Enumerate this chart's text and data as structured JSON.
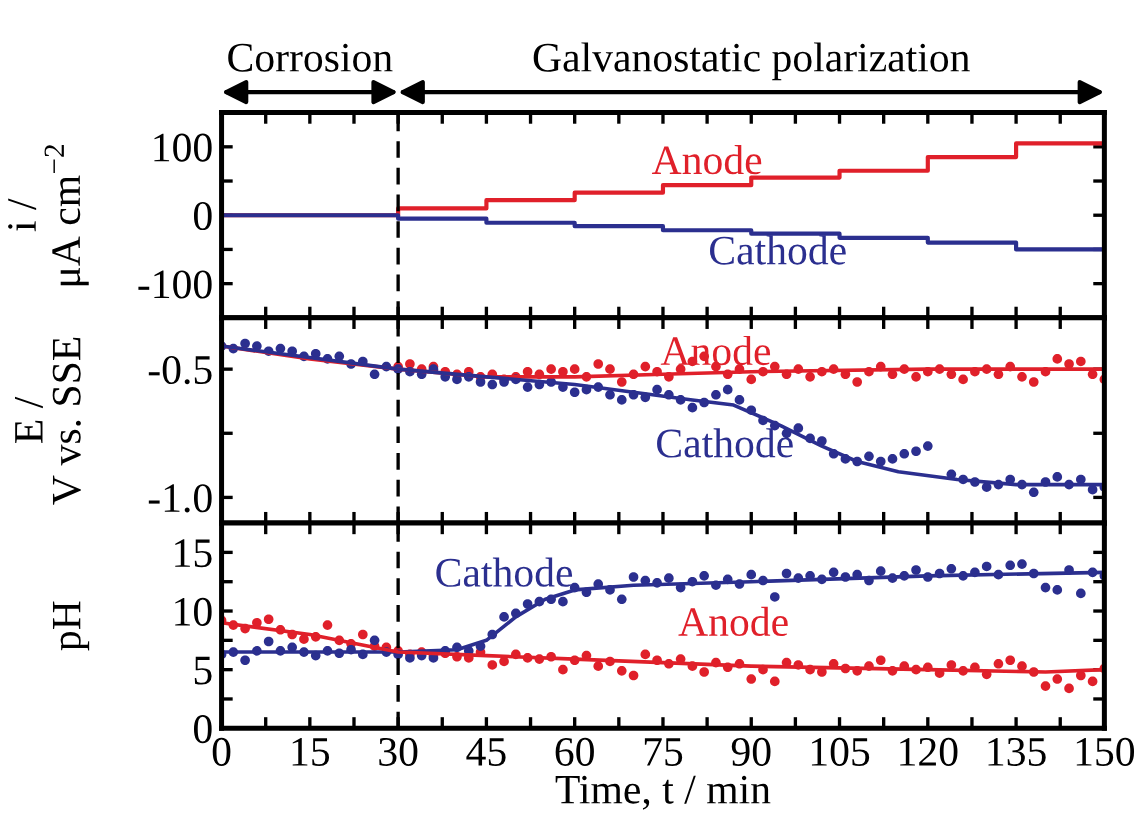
{
  "chart_data": [
    {
      "type": "step",
      "ylabel": "i /\nμA cm$^{−2}$",
      "xlim": [
        0,
        150
      ],
      "ylim": [
        -150,
        150
      ],
      "tick_labels": "y",
      "xticks": [
        0,
        {
          "value": 7.5,
          "label": null
        },
        15,
        {
          "value": 22.5,
          "label": null
        },
        30,
        {
          "value": 37.5,
          "label": null
        },
        45,
        {
          "value": 52.5,
          "label": null
        },
        60,
        {
          "value": 67.5,
          "label": null
        },
        75,
        {
          "value": 82.5,
          "label": null
        },
        90,
        {
          "value": 97.5,
          "label": null
        },
        105,
        {
          "value": 112.5,
          "label": null
        },
        120,
        {
          "value": 127.5,
          "label": null
        },
        135,
        {
          "value": 142.5,
          "label": null
        },
        150
      ],
      "yticks": [
        -100,
        {
          "value": -50,
          "label": null
        },
        0,
        {
          "value": 50,
          "label": null
        },
        100
      ],
      "annotations": [
        "Corrosion",
        "Galvanostatic polarization"
      ],
      "ref_lines": [
        {
          "axis": "x",
          "value": 30,
          "color": "#000000",
          "line_style": "dashed"
        }
      ],
      "x": [
        0,
        30,
        45,
        60,
        75,
        90,
        105,
        120,
        135,
        150
      ],
      "series": [
        {
          "name": "Anode",
          "color": "#e0202a",
          "values": [
            0,
            10,
            22,
            33,
            44,
            55,
            65,
            85,
            105,
            105
          ]
        },
        {
          "name": "Cathode",
          "color": "#2b2f8f",
          "values": [
            0,
            -5,
            -11,
            -16,
            -22,
            -27,
            -33,
            -40,
            -50,
            -50
          ]
        }
      ],
      "grid": false
    },
    {
      "type": "scatter",
      "ylabel": "E /\nV vs. SSE",
      "xlim": [
        0,
        150
      ],
      "ylim": [
        -1.1,
        -0.3
      ],
      "tick_labels": "y",
      "xticks": [
        0,
        {
          "value": 7.5,
          "label": null
        },
        15,
        {
          "value": 22.5,
          "label": null
        },
        30,
        {
          "value": 37.5,
          "label": null
        },
        45,
        {
          "value": 52.5,
          "label": null
        },
        60,
        {
          "value": 67.5,
          "label": null
        },
        75,
        {
          "value": 82.5,
          "label": null
        },
        90,
        {
          "value": 97.5,
          "label": null
        },
        105,
        {
          "value": 112.5,
          "label": null
        },
        120,
        {
          "value": 127.5,
          "label": null
        },
        135,
        {
          "value": 142.5,
          "label": null
        },
        150
      ],
      "yticks": [
        {
          "value": -1.0,
          "label": "-1.0"
        },
        {
          "value": -0.75,
          "label": null
        },
        {
          "value": -0.5,
          "label": "-0.5"
        }
      ],
      "ref_lines": [
        {
          "axis": "x",
          "value": 30,
          "color": "#000000",
          "line_style": "dashed"
        }
      ],
      "series": [
        {
          "marker": "circle",
          "color": "#e0202a",
          "x": [
            30,
            32,
            34,
            36,
            38,
            40,
            42,
            44,
            46,
            48,
            50,
            52,
            54,
            56,
            58,
            60,
            62,
            64,
            66,
            68,
            70,
            72,
            74,
            76,
            78,
            80,
            82,
            84,
            86,
            88,
            90,
            92,
            94,
            96,
            98,
            100,
            102,
            104,
            106,
            108,
            110,
            112,
            114,
            116,
            118,
            120,
            122,
            124,
            126,
            128,
            130,
            132,
            134,
            136,
            138,
            140,
            142,
            144,
            146,
            148,
            150
          ],
          "values": [
            -0.49,
            -0.48,
            -0.5,
            -0.49,
            -0.51,
            -0.52,
            -0.51,
            -0.53,
            -0.52,
            -0.54,
            -0.53,
            -0.51,
            -0.52,
            -0.5,
            -0.51,
            -0.5,
            -0.53,
            -0.48,
            -0.5,
            -0.55,
            -0.52,
            -0.49,
            -0.51,
            -0.53,
            -0.5,
            -0.47,
            -0.45,
            -0.49,
            -0.52,
            -0.5,
            -0.54,
            -0.51,
            -0.49,
            -0.52,
            -0.5,
            -0.53,
            -0.51,
            -0.5,
            -0.52,
            -0.55,
            -0.51,
            -0.49,
            -0.52,
            -0.5,
            -0.53,
            -0.51,
            -0.5,
            -0.52,
            -0.54,
            -0.51,
            -0.5,
            -0.52,
            -0.49,
            -0.53,
            -0.55,
            -0.51,
            -0.46,
            -0.48,
            -0.47,
            -0.52,
            -0.54
          ]
        },
        {
          "marker": "circle",
          "color": "#2b2f8f",
          "x": [
            0,
            2,
            4,
            6,
            8,
            10,
            12,
            14,
            16,
            18,
            20,
            22,
            24,
            26,
            28,
            30,
            32,
            34,
            36,
            38,
            40,
            42,
            44,
            46,
            48,
            50,
            52,
            54,
            56,
            58,
            60,
            62,
            64,
            66,
            68,
            70,
            72,
            74,
            76,
            78,
            80,
            82,
            84,
            86,
            88,
            90,
            92,
            94,
            96,
            98,
            100,
            102,
            104,
            106,
            108,
            110,
            112,
            114,
            116,
            118,
            120,
            124,
            126,
            128,
            130,
            132,
            134,
            136,
            138,
            140,
            142,
            144,
            146,
            148,
            150
          ],
          "values": [
            -0.41,
            -0.42,
            -0.4,
            -0.41,
            -0.43,
            -0.42,
            -0.43,
            -0.45,
            -0.44,
            -0.46,
            -0.45,
            -0.48,
            -0.47,
            -0.52,
            -0.49,
            -0.5,
            -0.51,
            -0.52,
            -0.5,
            -0.53,
            -0.54,
            -0.53,
            -0.55,
            -0.56,
            -0.55,
            -0.54,
            -0.57,
            -0.56,
            -0.55,
            -0.57,
            -0.59,
            -0.58,
            -0.57,
            -0.6,
            -0.62,
            -0.6,
            -0.61,
            -0.58,
            -0.6,
            -0.62,
            -0.65,
            -0.63,
            -0.6,
            -0.58,
            -0.62,
            -0.66,
            -0.7,
            -0.72,
            -0.75,
            -0.73,
            -0.77,
            -0.78,
            -0.83,
            -0.85,
            -0.86,
            -0.84,
            -0.86,
            -0.85,
            -0.83,
            -0.82,
            -0.8,
            -0.91,
            -0.93,
            -0.94,
            -0.96,
            -0.95,
            -0.93,
            -0.95,
            -0.98,
            -0.94,
            -0.92,
            -0.95,
            -0.93,
            -0.97,
            -0.96
          ]
        },
        {
          "type": "line",
          "name": "Anode",
          "color": "#e0202a",
          "x": [
            0,
            15,
            30,
            45,
            60,
            75,
            90,
            120,
            150
          ],
          "values": [
            -0.41,
            -0.46,
            -0.5,
            -0.53,
            -0.53,
            -0.52,
            -0.51,
            -0.5,
            -0.5
          ]
        },
        {
          "type": "line",
          "name": "Cathode",
          "color": "#2b2f8f",
          "x": [
            0,
            30,
            45,
            60,
            70,
            80,
            87,
            95,
            102,
            108,
            115,
            125,
            135,
            150
          ],
          "values": [
            -0.41,
            -0.5,
            -0.53,
            -0.56,
            -0.59,
            -0.62,
            -0.64,
            -0.72,
            -0.8,
            -0.86,
            -0.9,
            -0.93,
            -0.95,
            -0.95
          ]
        }
      ],
      "grid": false
    },
    {
      "type": "scatter",
      "xlabel": "Time, t / min",
      "ylabel": "pH",
      "xlim": [
        0,
        150
      ],
      "ylim": [
        0,
        17.5
      ],
      "xticks": [
        0,
        {
          "value": 7.5,
          "label": null
        },
        15,
        {
          "value": 22.5,
          "label": null
        },
        30,
        {
          "value": 37.5,
          "label": null
        },
        45,
        {
          "value": 52.5,
          "label": null
        },
        60,
        {
          "value": 67.5,
          "label": null
        },
        75,
        {
          "value": 82.5,
          "label": null
        },
        90,
        {
          "value": 97.5,
          "label": null
        },
        105,
        {
          "value": 112.5,
          "label": null
        },
        120,
        {
          "value": 127.5,
          "label": null
        },
        135,
        {
          "value": 142.5,
          "label": null
        },
        150
      ],
      "yticks": [
        0,
        {
          "value": 2.5,
          "label": null
        },
        5,
        {
          "value": 7.5,
          "label": null
        },
        10,
        {
          "value": 12.5,
          "label": null
        },
        15
      ],
      "ref_lines": [
        {
          "axis": "x",
          "value": 30,
          "color": "#000000",
          "line_style": "dashed"
        }
      ],
      "series": [
        {
          "marker": "circle",
          "color": "#e0202a",
          "x": [
            0,
            2,
            4,
            6,
            8,
            10,
            12,
            14,
            16,
            18,
            20,
            22,
            24,
            26,
            28,
            30,
            32,
            34,
            36,
            38,
            40,
            42,
            44,
            46,
            48,
            50,
            52,
            54,
            56,
            58,
            60,
            62,
            64,
            66,
            68,
            70,
            72,
            74,
            76,
            78,
            80,
            82,
            84,
            86,
            88,
            90,
            92,
            94,
            96,
            98,
            100,
            102,
            104,
            106,
            108,
            110,
            112,
            114,
            116,
            118,
            120,
            122,
            124,
            126,
            128,
            130,
            132,
            134,
            136,
            138,
            140,
            142,
            144,
            146,
            148,
            150
          ],
          "values": [
            9.2,
            8.8,
            8.5,
            9.0,
            9.3,
            8.4,
            8.0,
            7.6,
            7.8,
            8.8,
            7.5,
            7.2,
            8.0,
            7.0,
            6.9,
            6.6,
            6.3,
            6.5,
            6.2,
            6.4,
            6.1,
            6.0,
            6.5,
            5.4,
            5.7,
            6.3,
            6.0,
            5.9,
            6.1,
            5.0,
            5.8,
            6.2,
            5.3,
            5.7,
            4.9,
            4.5,
            6.3,
            5.8,
            5.5,
            5.9,
            5.3,
            4.8,
            5.6,
            5.2,
            5.5,
            4.2,
            5.0,
            4.0,
            5.6,
            5.4,
            5.0,
            4.8,
            5.5,
            5.1,
            4.9,
            5.3,
            5.8,
            4.9,
            5.3,
            5.0,
            5.2,
            4.7,
            5.4,
            4.9,
            5.2,
            4.6,
            5.5,
            5.8,
            5.3,
            4.8,
            3.6,
            4.2,
            3.4,
            4.5,
            4.0,
            5.1
          ]
        },
        {
          "marker": "circle",
          "color": "#2b2f8f",
          "x": [
            0,
            2,
            4,
            6,
            8,
            10,
            12,
            14,
            16,
            18,
            20,
            22,
            24,
            26,
            28,
            30,
            32,
            34,
            36,
            38,
            40,
            42,
            44,
            46,
            48,
            50,
            52,
            54,
            56,
            58,
            60,
            62,
            64,
            66,
            68,
            70,
            72,
            74,
            76,
            78,
            80,
            82,
            84,
            86,
            88,
            90,
            92,
            94,
            96,
            98,
            100,
            102,
            104,
            106,
            108,
            110,
            112,
            114,
            116,
            118,
            120,
            122,
            124,
            126,
            128,
            130,
            132,
            134,
            136,
            138,
            140,
            142,
            144,
            146,
            148,
            150
          ],
          "values": [
            6.3,
            6.5,
            5.8,
            6.6,
            7.4,
            6.6,
            6.9,
            6.5,
            6.2,
            6.6,
            6.4,
            6.7,
            6.3,
            7.5,
            6.5,
            6.3,
            6.0,
            6.2,
            6.0,
            6.6,
            6.9,
            6.6,
            7.0,
            8.0,
            9.5,
            9.8,
            10.6,
            10.8,
            11.0,
            10.8,
            12.0,
            11.6,
            12.3,
            11.8,
            11.0,
            12.9,
            12.6,
            12.4,
            12.8,
            12.0,
            12.5,
            13.0,
            12.2,
            12.7,
            12.3,
            13.1,
            12.6,
            11.2,
            13.2,
            12.8,
            13.0,
            12.7,
            13.3,
            12.9,
            13.1,
            12.6,
            13.4,
            12.8,
            13.0,
            13.5,
            12.9,
            13.2,
            13.6,
            13.0,
            13.3,
            13.8,
            13.1,
            13.9,
            14.0,
            13.2,
            12.0,
            11.8,
            13.5,
            11.5,
            13.3,
            13.0
          ]
        },
        {
          "type": "line",
          "name": "Cathode",
          "color": "#2b2f8f",
          "x": [
            0,
            30,
            40,
            45,
            50,
            55,
            60,
            70,
            90,
            120,
            150
          ],
          "values": [
            6.5,
            6.5,
            6.7,
            7.5,
            9.5,
            11,
            11.8,
            12.2,
            12.5,
            13,
            13.3
          ]
        },
        {
          "type": "line",
          "name": "Anode",
          "color": "#e0202a",
          "x": [
            0,
            15,
            25,
            30,
            45,
            60,
            90,
            120,
            140,
            150
          ],
          "values": [
            9,
            8,
            7,
            6.5,
            6.2,
            5.9,
            5.3,
            5,
            4.8,
            5.0
          ]
        }
      ],
      "grid": false
    }
  ]
}
